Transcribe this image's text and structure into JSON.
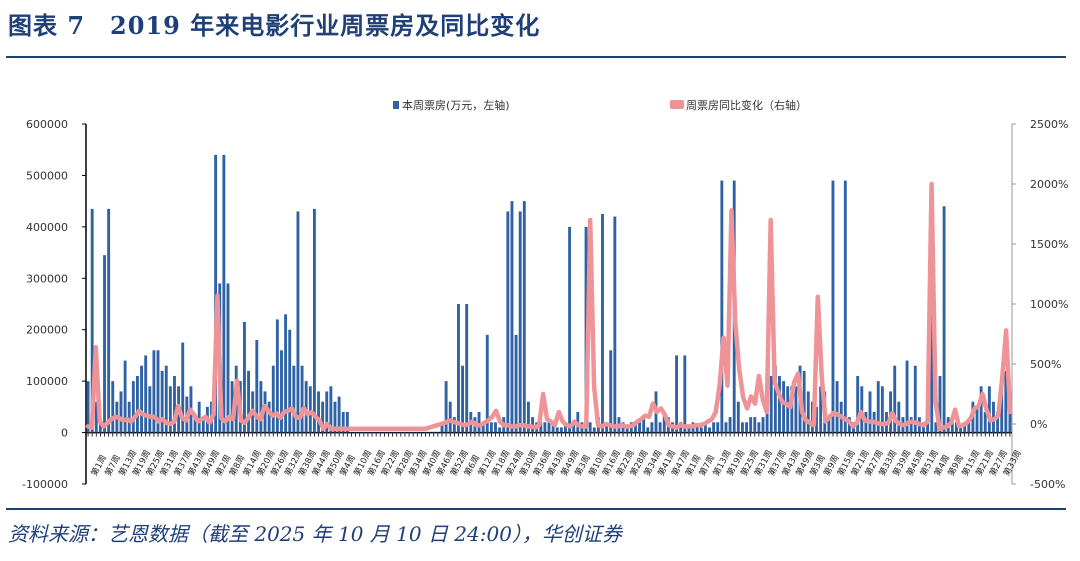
{
  "header": {
    "title": "图表 7　2019 年来电影行业周票房及同比变化"
  },
  "footer": {
    "source": "资料来源：艺恩数据（截至 2025 年 10 月 10 日 24:00），华创证券"
  },
  "chart_data": {
    "type": "bar+line",
    "legend": [
      "本周票房(万元，左轴)",
      "周票房同比变化（右轴）"
    ],
    "legend_position": "top",
    "colors": {
      "bar": "#2e62a5",
      "line": "#ee9397",
      "axis": "#000000",
      "right_axis": "#999999",
      "title": "#1f3f78"
    },
    "ylim_left": [
      -100000,
      600000
    ],
    "ylim_right": [
      -500,
      2500
    ],
    "left_ticks": [
      "600000",
      "500000",
      "400000",
      "300000",
      "200000",
      "100000",
      "0",
      "-100000"
    ],
    "right_ticks": [
      "2500%",
      "2000%",
      "1500%",
      "1000%",
      "500%",
      "0%",
      "-500%"
    ],
    "x_labels": [
      "第1周",
      "第7周",
      "第13周",
      "第19周",
      "第25周",
      "第31周",
      "第37周",
      "第43周",
      "第49周",
      "第2周",
      "第8周",
      "第14周",
      "第20周",
      "第26周",
      "第32周",
      "第38周",
      "第44周",
      "第50周",
      "第4周",
      "第10周",
      "第16周",
      "第22周",
      "第28周",
      "第34周",
      "第40周",
      "第46周",
      "第52周",
      "第6周",
      "第12周",
      "第18周",
      "第24周",
      "第30周",
      "第36周",
      "第43周",
      "第49周",
      "第3周",
      "第10周",
      "第16周",
      "第22周",
      "第28周",
      "第34周",
      "第41周",
      "第47周",
      "第1周",
      "第7周",
      "第13周",
      "第19周",
      "第25周",
      "第31周",
      "第37周",
      "第43周",
      "第49周",
      "第3周",
      "第9周",
      "第15周",
      "第21周",
      "第27周",
      "第33周",
      "第39周",
      "第45周",
      "第51周",
      "第4周",
      "第9周",
      "第15周",
      "第21周",
      "第27周",
      "第33周"
    ],
    "series": [
      {
        "name": "本周票房(万元，左轴)",
        "type": "bar",
        "values": [
          100000,
          435000,
          60000,
          20000,
          345000,
          435000,
          100000,
          60000,
          80000,
          140000,
          60000,
          100000,
          110000,
          130000,
          150000,
          90000,
          160000,
          160000,
          120000,
          130000,
          90000,
          110000,
          90000,
          175000,
          70000,
          90000,
          30000,
          60000,
          30000,
          50000,
          60000,
          540000,
          290000,
          540000,
          290000,
          100000,
          130000,
          100000,
          215000,
          120000,
          80000,
          180000,
          100000,
          80000,
          60000,
          130000,
          220000,
          160000,
          230000,
          200000,
          130000,
          430000,
          130000,
          100000,
          90000,
          435000,
          80000,
          60000,
          80000,
          90000,
          60000,
          70000,
          40000,
          40000,
          0,
          0,
          0,
          0,
          0,
          0,
          0,
          0,
          0,
          0,
          0,
          0,
          0,
          0,
          0,
          0,
          0,
          0,
          0,
          0,
          0,
          0,
          20000,
          100000,
          60000,
          30000,
          250000,
          130000,
          250000,
          40000,
          30000,
          40000,
          20000,
          190000,
          20000,
          20000,
          10000,
          30000,
          430000,
          450000,
          190000,
          430000,
          450000,
          60000,
          30000,
          20000,
          20000,
          20000,
          20000,
          20000,
          10000,
          10000,
          20000,
          400000,
          15000,
          40000,
          20000,
          400000,
          20000,
          10000,
          30000,
          425000,
          20000,
          160000,
          420000,
          30000,
          20000,
          10000,
          20000,
          20000,
          20000,
          30000,
          10000,
          20000,
          80000,
          20000,
          40000,
          30000,
          20000,
          150000,
          20000,
          150000,
          10000,
          20000,
          10000,
          10000,
          20000,
          10000,
          20000,
          20000,
          490000,
          20000,
          30000,
          490000,
          60000,
          20000,
          20000,
          30000,
          30000,
          20000,
          30000,
          60000,
          110000,
          130000,
          110000,
          100000,
          90000,
          90000,
          90000,
          130000,
          120000,
          80000,
          60000,
          50000,
          90000,
          80000,
          30000,
          490000,
          100000,
          60000,
          490000,
          30000,
          20000,
          110000,
          90000,
          40000,
          80000,
          40000,
          100000,
          90000,
          40000,
          80000,
          130000,
          60000,
          30000,
          140000,
          30000,
          130000,
          30000,
          20000,
          90000,
          430000,
          20000,
          110000,
          440000,
          30000,
          20000,
          20000,
          10000,
          20000,
          20000,
          60000,
          50000,
          90000,
          40000,
          90000,
          60000,
          40000,
          90000,
          120000,
          60000
        ]
      },
      {
        "name": "周票房同比变化（右轴）",
        "type": "line",
        "values": [
          -20,
          -30,
          640,
          20,
          -20,
          10,
          40,
          60,
          50,
          30,
          40,
          20,
          60,
          110,
          80,
          70,
          60,
          60,
          20,
          40,
          10,
          0,
          20,
          150,
          50,
          30,
          120,
          80,
          20,
          40,
          60,
          10,
          80,
          1070,
          50,
          20,
          60,
          40,
          360,
          30,
          10,
          60,
          110,
          60,
          40,
          150,
          110,
          70,
          90,
          50,
          100,
          110,
          130,
          60,
          50,
          130,
          80,
          100,
          60,
          30,
          -40,
          0,
          -40,
          -40,
          -40,
          -40,
          -40,
          -40,
          -40,
          -40,
          -40,
          -40,
          -40,
          -40,
          -40,
          -40,
          -40,
          -40,
          -40,
          -40,
          -40,
          -40,
          -40,
          -40,
          -40,
          -40,
          -40,
          -30,
          -20,
          -10,
          0,
          10,
          30,
          20,
          10,
          0,
          -10,
          0,
          20,
          -10,
          -10,
          10,
          30,
          60,
          110,
          20,
          -10,
          -10,
          -20,
          -20,
          -10,
          -10,
          -20,
          -20,
          -30,
          -10,
          250,
          40,
          20,
          -10,
          100,
          20,
          -10,
          -20,
          20,
          -10,
          -20,
          -20,
          1700,
          310,
          -10,
          -20,
          0,
          -10,
          -20,
          -20,
          -10,
          -20,
          -20,
          -10,
          20,
          40,
          70,
          60,
          170,
          100,
          130,
          80,
          -10,
          -20,
          -30,
          -10,
          -20,
          -20,
          -20,
          -10,
          -10,
          0,
          20,
          40,
          100,
          330,
          720,
          320,
          1780,
          830,
          450,
          220,
          130,
          230,
          170,
          400,
          200,
          100,
          1700,
          350,
          260,
          180,
          170,
          140,
          350,
          420,
          100,
          30,
          10,
          -10,
          1060,
          400,
          20,
          60,
          90,
          80,
          60,
          40,
          20,
          -20,
          10,
          100,
          30,
          20,
          20,
          10,
          0,
          0,
          10,
          90,
          20,
          0,
          -10,
          10,
          20,
          10,
          0,
          -10,
          20,
          2000,
          200,
          -40,
          -30,
          -20,
          10,
          120,
          -20,
          -10,
          10,
          50,
          130,
          150,
          250,
          120,
          30,
          40,
          70,
          380,
          780,
          100
        ]
      }
    ]
  }
}
